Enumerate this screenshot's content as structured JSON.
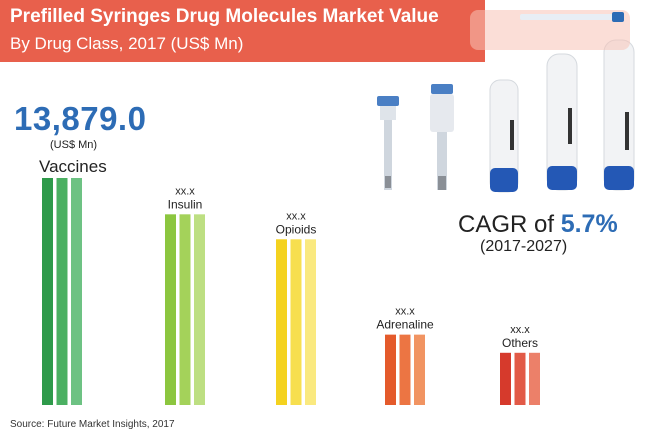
{
  "header": {
    "title": "Prefilled Syringes Drug Molecules Market Value",
    "subtitle": "By Drug Class, 2017 (US$ Mn)"
  },
  "hero": {
    "value": "13,879.0",
    "unit": "(US$ Mn)"
  },
  "cagr": {
    "prefix": "CAGR of ",
    "value": "5.7%",
    "period": "(2017-2027)"
  },
  "source": "Source: Future Market Insights, 2017",
  "chart_data": {
    "type": "bar",
    "categories": [
      "Vaccines",
      "Insulin",
      "Opioids",
      "Adrenaline",
      "Others"
    ],
    "value_labels": [
      "",
      "xx.x",
      "xx.x",
      "xx.x",
      "xx.x"
    ],
    "relative_heights": [
      1.0,
      0.84,
      0.73,
      0.31,
      0.23
    ],
    "colors": [
      [
        "#2e9a4a",
        "#4bb062",
        "#6dc283"
      ],
      [
        "#8cc63f",
        "#a4d25a",
        "#bddf82"
      ],
      [
        "#f4d21f",
        "#f7df4f",
        "#fae97f"
      ],
      [
        "#e45a2b",
        "#ec7543",
        "#f19462"
      ],
      [
        "#d63a2c",
        "#e25a47",
        "#ec8069"
      ]
    ]
  },
  "image": {
    "description_icon": "prefilled-syringes-photo"
  }
}
